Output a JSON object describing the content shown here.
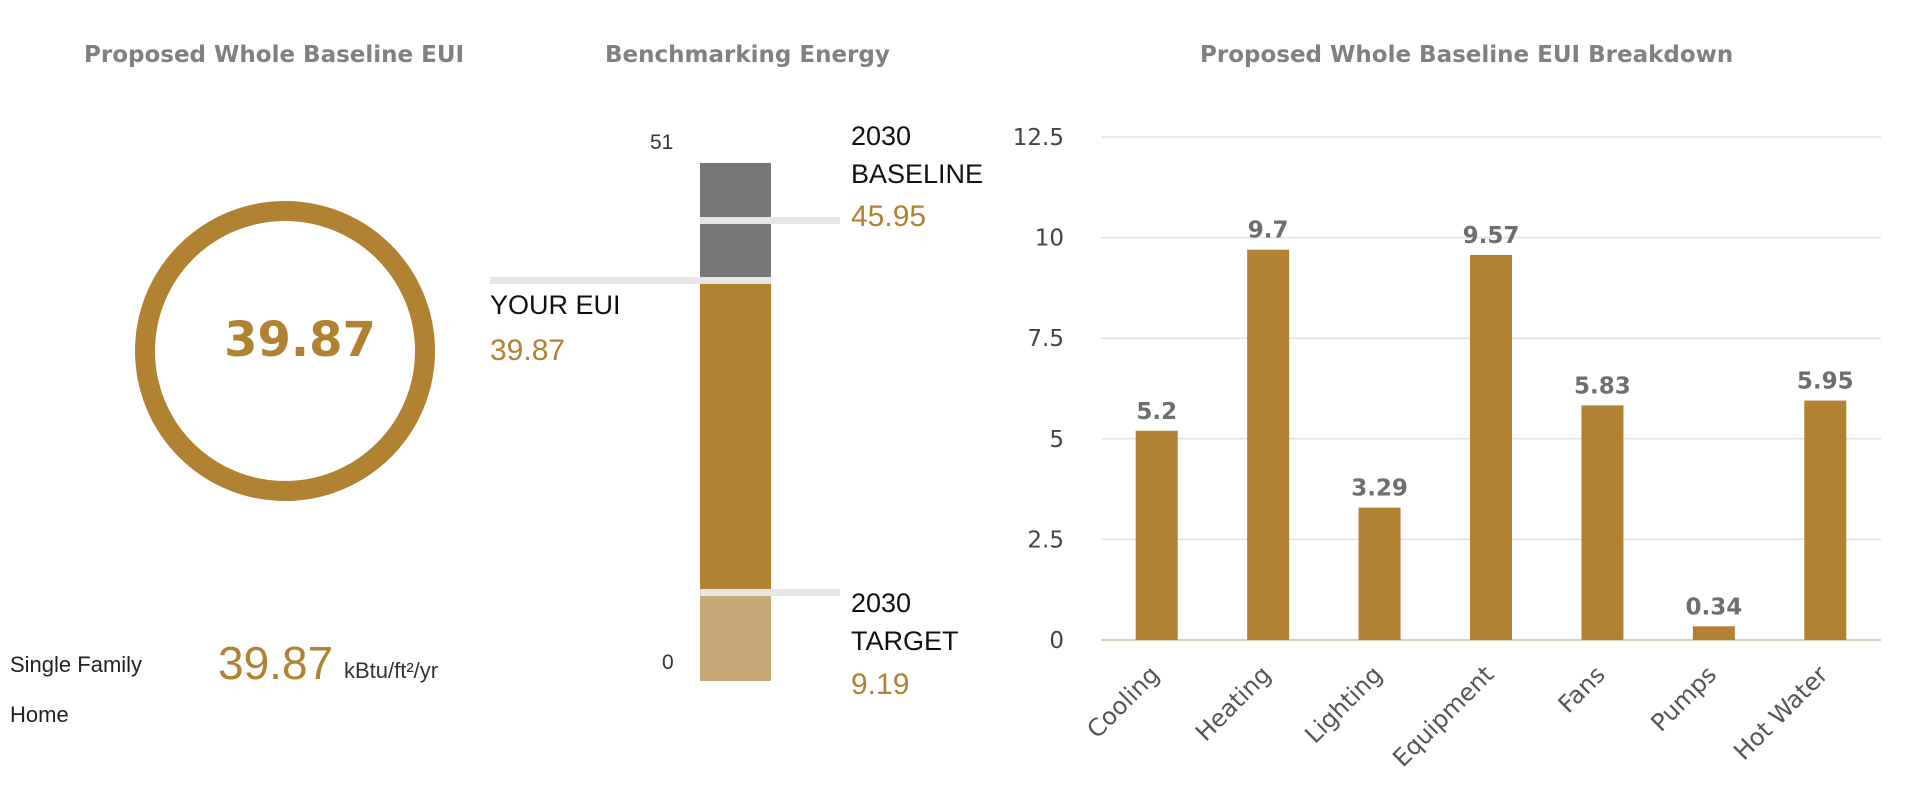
{
  "gauge": {
    "title": "Proposed Whole Baseline EUI",
    "value": "39.87",
    "building_type": [
      "Single Family",
      "Home"
    ],
    "eui_display": "39.87",
    "unit": "kBtu/ft²/yr"
  },
  "benchmark": {
    "title": "Benchmarking Energy",
    "axis_max": "51",
    "axis_min": "0",
    "baseline_label": [
      "2030",
      "BASELINE"
    ],
    "baseline_value": "45.95",
    "your_label": "YOUR EUI",
    "your_value": "39.87",
    "target_label": [
      "2030",
      "TARGET"
    ],
    "target_value": "9.19",
    "colors": {
      "above": "#767676",
      "yours": "#b08231",
      "target": "#c6a877",
      "marker": "#e6e6e6"
    }
  },
  "chart_data": {
    "type": "bar",
    "title": "Proposed Whole Baseline EUI Breakdown",
    "categories": [
      "Cooling",
      "Heating",
      "Lighting",
      "Equipment",
      "Fans",
      "Pumps",
      "Hot Water"
    ],
    "values": [
      5.2,
      9.7,
      3.29,
      9.57,
      5.83,
      0.34,
      5.95
    ],
    "ylim": [
      0,
      12.5
    ],
    "yticks": [
      "0",
      "2.5",
      "5",
      "7.5",
      "10",
      "12.5"
    ],
    "grid": true,
    "bar_color": "#b08231"
  },
  "colors": {
    "accent": "#b08231",
    "title_gray": "#808080"
  }
}
